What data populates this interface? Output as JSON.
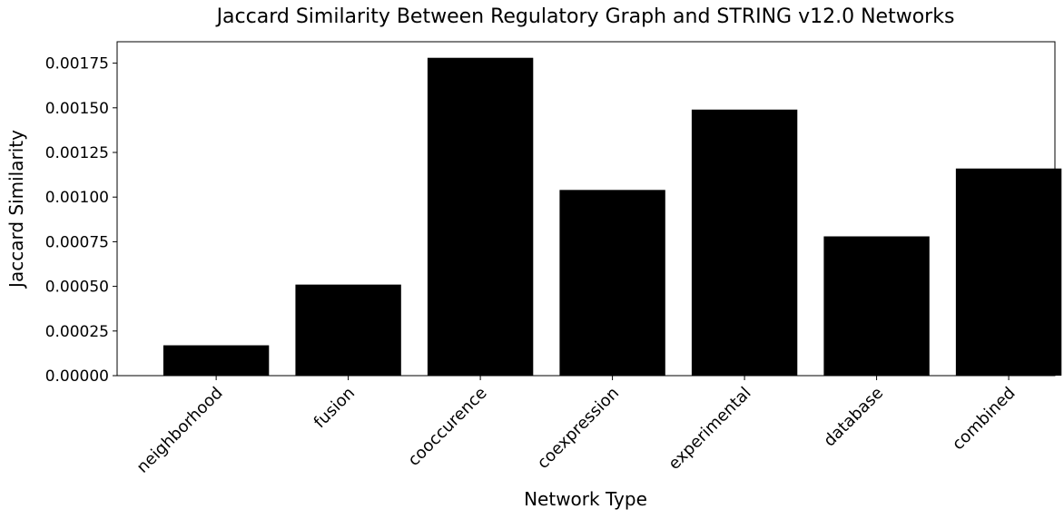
{
  "chart_data": {
    "type": "bar",
    "title": "Jaccard Similarity Between Regulatory Graph and STRING v12.0 Networks",
    "xlabel": "Network Type",
    "ylabel": "Jaccard Similarity",
    "categories": [
      "neighborhood",
      "fusion",
      "cooccurence",
      "coexpression",
      "experimental",
      "database",
      "combined"
    ],
    "values": [
      0.00017,
      0.00051,
      0.00178,
      0.00104,
      0.00149,
      0.00078,
      0.00116
    ],
    "ylim": [
      0,
      0.00187
    ],
    "yticks": [
      "0.00000",
      "0.00025",
      "0.00050",
      "0.00075",
      "0.00100",
      "0.00125",
      "0.00150",
      "0.00175"
    ],
    "bar_color": "#000000",
    "grid": false,
    "legend": false
  }
}
